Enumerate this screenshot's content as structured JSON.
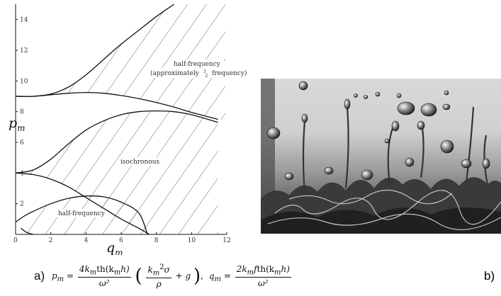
{
  "chart": {
    "x_ticks": [
      "0",
      "2",
      "4",
      "6",
      "8",
      "10",
      "12"
    ],
    "y_ticks": [
      "2",
      "4",
      "6",
      "8",
      "10",
      "12",
      "14"
    ],
    "x_label": {
      "main": "q",
      "sub": "m"
    },
    "y_label": {
      "main": "p",
      "sub": "m"
    },
    "regions": {
      "upper_line1": "half-frequency",
      "upper_line2": "(approximately",
      "upper_frac_num": "3",
      "upper_frac_den": "2",
      "upper_line3": "frequency)",
      "middle": "isochronous",
      "lower": "half-frequency"
    }
  },
  "chart_data": {
    "type": "line",
    "xlim": [
      0,
      12
    ],
    "ylim": [
      0,
      15
    ],
    "series": [
      {
        "x": [
          0,
          0.5,
          1,
          2,
          3,
          4,
          5,
          6,
          7,
          7.5
        ],
        "y": [
          0.8,
          1.2,
          1.5,
          2.0,
          2.35,
          2.5,
          2.45,
          2.1,
          1.4,
          0.0
        ]
      },
      {
        "x": [
          0.3,
          0.6,
          1
        ],
        "y": [
          0.4,
          0.15,
          0.0
        ]
      },
      {
        "x": [
          0,
          1,
          2,
          3,
          4,
          5,
          6,
          7,
          7.6
        ],
        "y": [
          4.0,
          3.9,
          3.6,
          3.1,
          2.4,
          1.7,
          1.0,
          0.4,
          0.0
        ]
      },
      {
        "x": [
          0,
          1,
          2,
          3,
          4,
          5,
          6,
          7,
          8,
          9,
          10,
          11.5
        ],
        "y": [
          4.0,
          4.2,
          4.9,
          5.9,
          6.8,
          7.4,
          7.8,
          8.0,
          8.05,
          8.0,
          7.8,
          7.3
        ]
      },
      {
        "x": [
          0,
          1,
          2,
          3,
          4,
          5,
          6,
          7,
          8,
          9,
          10,
          11.5
        ],
        "y": [
          9.0,
          9.0,
          9.1,
          9.2,
          9.25,
          9.2,
          9.05,
          8.85,
          8.6,
          8.3,
          7.95,
          7.5
        ]
      },
      {
        "x": [
          0,
          1,
          2,
          3,
          4,
          5,
          6,
          7,
          8,
          9
        ],
        "y": [
          9.0,
          9.0,
          9.15,
          9.6,
          10.4,
          11.4,
          12.4,
          13.3,
          14.2,
          15.0
        ]
      }
    ]
  },
  "formula": {
    "label": "a)",
    "p": "p",
    "q": "q",
    "m": "m",
    "pm_num": "4k",
    "pm_num_th": "th(k",
    "pm_num_h": "h)",
    "omega2": "ω²",
    "inner_num": "k",
    "inner_exp": "2",
    "sigma": "σ",
    "rho": "ρ",
    "plus_g": "+ g",
    "qm_num": "2k",
    "qm_f": "f",
    "qm_th": "th(k",
    "qm_h": "h)"
  },
  "panel_b": "b)"
}
